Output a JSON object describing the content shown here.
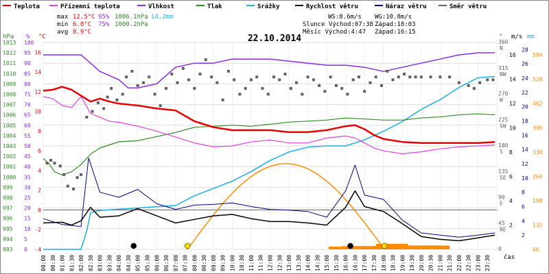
{
  "chart_data": {
    "type": "line",
    "title": "22.10.2014",
    "xlabel": "čas",
    "x_ticks": [
      "00:00",
      "00:30",
      "01:00",
      "01:30",
      "02:00",
      "02:30",
      "03:00",
      "03:30",
      "04:00",
      "04:30",
      "05:00",
      "05:30",
      "06:00",
      "06:30",
      "07:00",
      "07:30",
      "08:00",
      "08:30",
      "09:00",
      "09:30",
      "10:00",
      "10:30",
      "11:00",
      "11:30",
      "12:00",
      "12:30",
      "13:00",
      "13:30",
      "14:00",
      "14:30",
      "15:00",
      "15:30",
      "16:00",
      "16:30",
      "17:00",
      "17:30",
      "18:00",
      "18:30",
      "19:00",
      "19:30",
      "20:00",
      "20:30",
      "21:00",
      "21:30",
      "22:00",
      "22:30",
      "23:00",
      "23:30"
    ],
    "axes": {
      "hpa": {
        "label": "hPa",
        "ticks": [
          "1013",
          "1012",
          "1011",
          "1010",
          "1009",
          "1008",
          "1007",
          "1006",
          "1005",
          "1004",
          "1003",
          "1002",
          "1001",
          "1000",
          "999",
          "998",
          "997",
          "996",
          "995",
          "994",
          "993"
        ],
        "range": [
          993,
          1013
        ]
      },
      "pct": {
        "label": "%",
        "ticks": [
          "100",
          "95",
          "90",
          "85",
          "80",
          "75",
          "70",
          "65",
          "60",
          "55",
          "50",
          "45",
          "40",
          "35",
          "30",
          "25",
          "20",
          "15",
          "10",
          "5",
          "0"
        ],
        "range": [
          0,
          100
        ]
      },
      "temp": {
        "label": "°C",
        "ticks": [
          "16",
          "14",
          "12",
          "10",
          "8",
          "6",
          "4",
          "2",
          "0",
          "-2",
          "-4"
        ],
        "range": [
          -4,
          17
        ]
      },
      "dir": {
        "label": "°",
        "ticks": [
          "360",
          "315",
          "270",
          "225",
          "180",
          "135",
          "90",
          "45",
          "0"
        ],
        "dirs": [
          "N",
          "NW",
          "W",
          "SW",
          "S",
          "SE",
          "E",
          "NE"
        ],
        "range": [
          0,
          360
        ]
      },
      "ms": {
        "label": "m/s",
        "ticks": [
          "28",
          "26",
          "24",
          "22",
          "20",
          "18",
          "16",
          "14",
          "12",
          "10",
          "8",
          "6",
          "4",
          "2"
        ],
        "range": [
          0,
          29
        ]
      },
      "mm": {
        "label": "mm",
        "ticks": [
          "594",
          "528",
          "462",
          "396",
          "330",
          "264",
          "198",
          "132",
          "66"
        ],
        "right_ticks": [
          "16",
          "14",
          "12",
          "10",
          "8",
          "6",
          "4",
          "2"
        ]
      }
    },
    "legend": [
      {
        "name": "Teplota",
        "color": "#e60000"
      },
      {
        "name": "Přízemní teplota",
        "color": "#e040e0"
      },
      {
        "name": "Vlhkost",
        "color": "#8a2be2"
      },
      {
        "name": "Tlak",
        "color": "#2e8b22"
      },
      {
        "name": "Srážky",
        "color": "#1ab0e0"
      },
      {
        "name": "Rychlost větru",
        "color": "#000000"
      },
      {
        "name": "Náraz větru",
        "color": "#000080"
      },
      {
        "name": "Směr větru",
        "color": "#606060"
      }
    ],
    "stats": {
      "max_label": "max",
      "max_temp": "12.5°C",
      "max_hum": "95%",
      "max_press": "1006.1hPa",
      "max_rain": "14.2mm",
      "min_label": "min",
      "min_temp": "6.8°C",
      "min_hum": "75%",
      "min_press": "1000.2hPa",
      "avg_label": "avg",
      "avg_temp": "8.9°C"
    },
    "info": {
      "ws": "WS:8.6m/s",
      "wg": "WG:10.8m/s",
      "sun_rise": "Slunce Východ:07:38",
      "sun_set": "Západ:18:03",
      "moon_rise": "Měsíc  Východ:4:47",
      "moon_set": "Západ:16:15"
    },
    "series": [
      {
        "name": "Teplota",
        "unit": "°C",
        "x": [
          0,
          0.5,
          1,
          1.5,
          2,
          2.5,
          3,
          3.5,
          4,
          5,
          6,
          7,
          8,
          9,
          10,
          11,
          12,
          13,
          14,
          15,
          16,
          16.5,
          17,
          17.5,
          18,
          19,
          20,
          21,
          22,
          23,
          23.9
        ],
        "values": [
          12.1,
          12.2,
          12.5,
          12.2,
          11.6,
          11.0,
          11.3,
          11.0,
          10.8,
          10.6,
          10.3,
          10.1,
          9.0,
          8.4,
          8.1,
          8.1,
          8.1,
          7.9,
          7.9,
          8.1,
          8.5,
          8.6,
          8.2,
          7.6,
          7.2,
          6.9,
          6.8,
          6.8,
          6.8,
          6.8,
          6.9
        ]
      },
      {
        "name": "Přízemní teplota",
        "unit": "°C",
        "x": [
          0,
          0.5,
          1,
          1.5,
          2,
          2.5,
          3,
          3.5,
          4,
          5,
          6,
          7,
          8,
          9,
          10,
          11,
          12,
          13,
          14,
          15,
          16,
          16.5,
          17,
          17.5,
          18,
          19,
          20,
          21,
          22,
          23,
          23.9
        ],
        "values": [
          11.5,
          11.3,
          10.6,
          10.4,
          11.5,
          9.8,
          9.4,
          9.0,
          8.9,
          8.5,
          8.0,
          7.4,
          6.8,
          6.4,
          6.5,
          6.9,
          7.1,
          6.8,
          6.8,
          7.3,
          7.5,
          7.3,
          6.8,
          6.3,
          6.0,
          5.7,
          5.9,
          6.2,
          6.4,
          6.5,
          6.6
        ]
      },
      {
        "name": "Vlhkost",
        "unit": "%",
        "x": [
          0,
          1,
          2,
          3,
          3.5,
          4,
          4.5,
          5,
          5.5,
          6,
          6.5,
          7,
          8,
          9,
          10,
          11,
          12,
          13,
          14,
          15,
          16,
          17,
          18,
          19,
          20,
          21,
          22,
          23,
          23.9
        ],
        "values": [
          94,
          94,
          94,
          86,
          84,
          82,
          78,
          78,
          79,
          80,
          84,
          88,
          90,
          90,
          92,
          92,
          92,
          91,
          90,
          89,
          89,
          88,
          86,
          88,
          90,
          92,
          94,
          95,
          95
        ]
      },
      {
        "name": "Tlak",
        "unit": "hPa",
        "x": [
          0,
          0.3,
          0.6,
          1,
          1.5,
          2,
          2.5,
          3,
          3.5,
          4,
          5,
          6,
          7,
          8,
          9,
          10,
          11,
          12,
          13,
          14,
          15,
          16,
          17,
          18,
          19,
          20,
          21,
          22,
          23,
          23.9
        ],
        "values": [
          1001.8,
          1001.3,
          1000.5,
          1000.2,
          1000.5,
          1001.2,
          1002.2,
          1002.8,
          1003.1,
          1003.4,
          1003.5,
          1003.9,
          1004.3,
          1004.8,
          1004.9,
          1005.0,
          1004.9,
          1005.1,
          1005.3,
          1005.4,
          1005.5,
          1005.7,
          1005.6,
          1005.5,
          1005.5,
          1005.7,
          1005.8,
          1006.0,
          1006.1,
          1006.0
        ]
      },
      {
        "name": "Srážky",
        "unit": "mm",
        "x": [
          0,
          2,
          2.3,
          2.5,
          3,
          4,
          5,
          6,
          7,
          8,
          9,
          10,
          11,
          12,
          13,
          14,
          15,
          16,
          17,
          18,
          19,
          20,
          21,
          22,
          23,
          23.9
        ],
        "values": [
          0,
          0,
          1.5,
          3.0,
          3.2,
          3.3,
          3.4,
          3.5,
          3.6,
          4.4,
          5.0,
          5.6,
          6.4,
          7.3,
          8.0,
          8.4,
          8.5,
          8.5,
          9.0,
          9.7,
          10.5,
          11.5,
          12.3,
          13.3,
          14.1,
          14.2
        ]
      },
      {
        "name": "Rychlost větru",
        "unit": "m/s",
        "x": [
          0,
          1,
          1.5,
          2,
          2.5,
          3,
          4,
          5,
          6,
          7,
          8,
          9,
          10,
          11,
          12,
          13,
          14,
          15,
          16,
          16.5,
          17,
          18,
          19,
          20,
          21,
          22,
          23,
          23.9
        ],
        "values": [
          3.7,
          3.8,
          3.4,
          4.0,
          5.9,
          4.5,
          4.7,
          5.7,
          4.7,
          3.7,
          4.2,
          4.7,
          4.9,
          4.3,
          3.9,
          3.9,
          3.7,
          3.4,
          5.9,
          8.2,
          6.0,
          5.3,
          3.6,
          1.8,
          1.4,
          1.2,
          1.6,
          2.0
        ]
      },
      {
        "name": "Náraz větru",
        "unit": "m/s",
        "x": [
          0,
          1,
          2,
          2.4,
          3,
          4,
          5,
          6,
          7,
          8,
          9,
          10,
          11,
          12,
          13,
          14,
          15,
          16,
          16.5,
          17,
          18,
          19,
          20,
          21,
          22,
          23,
          23.9
        ],
        "values": [
          4.3,
          3.5,
          3.2,
          12.8,
          8.0,
          7.3,
          8.4,
          6.4,
          5.6,
          6.2,
          6.3,
          6.5,
          6.0,
          5.6,
          5.5,
          5.3,
          4.5,
          8.2,
          11.8,
          7.6,
          7.0,
          4.1,
          2.3,
          2.0,
          1.7,
          2.0,
          2.3
        ]
      },
      {
        "name": "Směr větru",
        "unit": "°",
        "type": "scatter",
        "x": [
          0.2,
          0.4,
          0.6,
          0.9,
          1.1,
          1.3,
          1.6,
          1.8,
          2.0,
          2.3,
          2.6,
          2.9,
          3.2,
          3.4,
          3.6,
          3.9,
          4.2,
          4.4,
          4.7,
          5.0,
          5.3,
          5.6,
          5.9,
          6.2,
          6.5,
          6.8,
          7.1,
          7.4,
          7.7,
          8.0,
          8.3,
          8.6,
          8.9,
          9.2,
          9.5,
          9.8,
          10.1,
          10.4,
          10.7,
          11.0,
          11.3,
          11.6,
          11.9,
          12.2,
          12.5,
          12.8,
          13.1,
          13.4,
          13.7,
          14.0,
          14.3,
          14.6,
          14.9,
          15.2,
          15.5,
          15.8,
          16.1,
          16.4,
          16.7,
          17.0,
          17.3,
          17.6,
          17.9,
          18.2,
          18.5,
          18.8,
          19.1,
          19.4,
          19.7,
          20.0,
          20.5,
          21.0,
          21.5,
          22.0,
          22.5,
          22.8,
          23.1,
          23.5,
          23.8
        ],
        "values": [
          150,
          155,
          150,
          145,
          130,
          110,
          105,
          125,
          130,
          230,
          240,
          255,
          245,
          265,
          280,
          260,
          270,
          300,
          310,
          285,
          290,
          300,
          270,
          250,
          280,
          305,
          290,
          315,
          295,
          280,
          305,
          330,
          300,
          290,
          260,
          310,
          295,
          270,
          280,
          295,
          300,
          280,
          270,
          300,
          295,
          305,
          280,
          290,
          270,
          300,
          295,
          285,
          275,
          300,
          285,
          280,
          270,
          295,
          300,
          275,
          290,
          300,
          285,
          310,
          295,
          300,
          305,
          300,
          300,
          300,
          300,
          300,
          300,
          290,
          285,
          280,
          290,
          295,
          295
        ]
      }
    ],
    "sun_curve": {
      "name": "Slunce",
      "color": "#ff8c00",
      "rise": "07:38",
      "set": "18:03"
    },
    "rain_intensity": {
      "color": "#ff8c00"
    },
    "markers": [
      {
        "label": "moon-rise",
        "time": "04:47",
        "color": "#000000"
      },
      {
        "label": "moon-set",
        "time": "16:15",
        "color": "#000000"
      },
      {
        "label": "sun-rise",
        "time": "07:38",
        "color": "#ffd700"
      },
      {
        "label": "sun-set",
        "time": "18:03",
        "color": "#ffd700"
      }
    ]
  }
}
